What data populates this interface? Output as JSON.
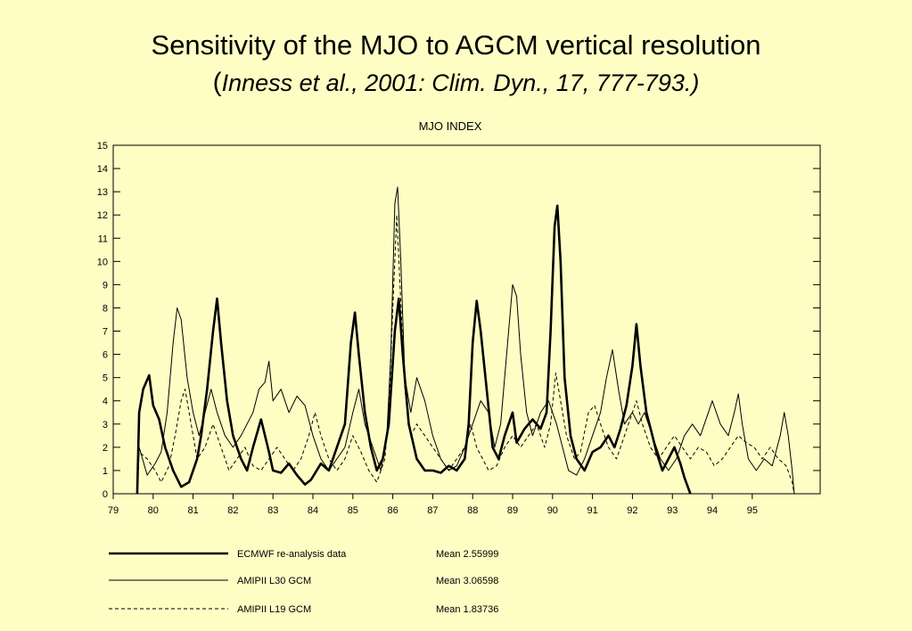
{
  "slide": {
    "title": "Sensitivity of the MJO to AGCM vertical resolution",
    "subtitle_open": "(",
    "subtitle_citation": "Inness et al., 2001: Clim. Dyn., 17, 777-793.)"
  },
  "chart_data": {
    "type": "line",
    "title": "MJO INDEX",
    "xlabel": "",
    "ylabel": "",
    "xlim": [
      79,
      96.7
    ],
    "ylim": [
      0,
      15
    ],
    "x_ticks": [
      "79",
      "80",
      "81",
      "82",
      "83",
      "84",
      "85",
      "86",
      "87",
      "88",
      "89",
      "90",
      "91",
      "92",
      "93",
      "94",
      "95"
    ],
    "y_ticks": [
      "0",
      "1",
      "2",
      "3",
      "4",
      "5",
      "6",
      "7",
      "8",
      "9",
      "10",
      "11",
      "12",
      "13",
      "14",
      "15"
    ],
    "grid": false,
    "legend": "bottom",
    "series": [
      {
        "name": "ECMWF re-analysis data",
        "mean_label": "Mean 2.55999",
        "style": "thick",
        "points": [
          [
            79.6,
            0
          ],
          [
            79.65,
            3.5
          ],
          [
            79.75,
            4.5
          ],
          [
            79.9,
            5.1
          ],
          [
            80.0,
            3.8
          ],
          [
            80.15,
            3.2
          ],
          [
            80.3,
            2.0
          ],
          [
            80.5,
            1.0
          ],
          [
            80.7,
            0.3
          ],
          [
            80.9,
            0.5
          ],
          [
            81.1,
            1.5
          ],
          [
            81.2,
            2.5
          ],
          [
            81.35,
            4.5
          ],
          [
            81.5,
            7.0
          ],
          [
            81.6,
            8.4
          ],
          [
            81.7,
            6.5
          ],
          [
            81.85,
            4.0
          ],
          [
            82.0,
            2.5
          ],
          [
            82.2,
            1.5
          ],
          [
            82.35,
            1.0
          ],
          [
            82.5,
            2.0
          ],
          [
            82.7,
            3.2
          ],
          [
            82.9,
            1.8
          ],
          [
            83.0,
            1.0
          ],
          [
            83.2,
            0.9
          ],
          [
            83.4,
            1.3
          ],
          [
            83.6,
            0.8
          ],
          [
            83.8,
            0.4
          ],
          [
            83.95,
            0.6
          ],
          [
            84.2,
            1.3
          ],
          [
            84.4,
            1.0
          ],
          [
            84.6,
            2.0
          ],
          [
            84.8,
            3.0
          ],
          [
            84.95,
            6.5
          ],
          [
            85.05,
            7.8
          ],
          [
            85.15,
            6.0
          ],
          [
            85.3,
            3.5
          ],
          [
            85.45,
            2.0
          ],
          [
            85.6,
            1.0
          ],
          [
            85.75,
            1.5
          ],
          [
            85.9,
            3.0
          ],
          [
            86.05,
            7.0
          ],
          [
            86.15,
            8.4
          ],
          [
            86.25,
            6.0
          ],
          [
            86.4,
            3.0
          ],
          [
            86.6,
            1.5
          ],
          [
            86.8,
            1.0
          ],
          [
            87.0,
            1.0
          ],
          [
            87.2,
            0.9
          ],
          [
            87.4,
            1.2
          ],
          [
            87.6,
            1.0
          ],
          [
            87.8,
            1.5
          ],
          [
            87.9,
            3.0
          ],
          [
            88.0,
            6.5
          ],
          [
            88.1,
            8.3
          ],
          [
            88.2,
            7.0
          ],
          [
            88.35,
            4.5
          ],
          [
            88.5,
            2.0
          ],
          [
            88.65,
            1.5
          ],
          [
            88.8,
            2.5
          ],
          [
            89.0,
            3.5
          ],
          [
            89.1,
            2.2
          ],
          [
            89.3,
            2.8
          ],
          [
            89.5,
            3.2
          ],
          [
            89.7,
            2.8
          ],
          [
            89.85,
            3.5
          ],
          [
            89.95,
            7.0
          ],
          [
            90.05,
            11.5
          ],
          [
            90.12,
            12.4
          ],
          [
            90.2,
            10.0
          ],
          [
            90.3,
            5.0
          ],
          [
            90.45,
            2.5
          ],
          [
            90.6,
            1.5
          ],
          [
            90.8,
            1.0
          ],
          [
            91.0,
            1.8
          ],
          [
            91.2,
            2.0
          ],
          [
            91.4,
            2.5
          ],
          [
            91.55,
            2.0
          ],
          [
            91.7,
            2.8
          ],
          [
            91.85,
            3.8
          ],
          [
            92.0,
            5.5
          ],
          [
            92.1,
            7.3
          ],
          [
            92.2,
            5.5
          ],
          [
            92.35,
            3.5
          ],
          [
            92.5,
            2.5
          ],
          [
            92.6,
            1.8
          ],
          [
            92.75,
            1.0
          ],
          [
            92.9,
            1.5
          ],
          [
            93.05,
            2.0
          ],
          [
            93.2,
            1.3
          ],
          [
            93.3,
            0.7
          ],
          [
            93.45,
            0
          ]
        ]
      },
      {
        "name": "AMIPII L30 GCM",
        "mean_label": "Mean 3.06598",
        "style": "thin",
        "points": [
          [
            79.6,
            0
          ],
          [
            79.65,
            2.0
          ],
          [
            79.85,
            0.8
          ],
          [
            80.05,
            1.3
          ],
          [
            80.2,
            1.8
          ],
          [
            80.35,
            3.5
          ],
          [
            80.5,
            6.5
          ],
          [
            80.6,
            8.0
          ],
          [
            80.7,
            7.5
          ],
          [
            80.85,
            5.0
          ],
          [
            81.0,
            3.5
          ],
          [
            81.15,
            2.5
          ],
          [
            81.3,
            3.5
          ],
          [
            81.45,
            4.5
          ],
          [
            81.6,
            3.5
          ],
          [
            81.8,
            2.5
          ],
          [
            82.0,
            2.0
          ],
          [
            82.2,
            2.5
          ],
          [
            82.5,
            3.5
          ],
          [
            82.65,
            4.5
          ],
          [
            82.8,
            4.8
          ],
          [
            82.9,
            5.7
          ],
          [
            83.0,
            4.0
          ],
          [
            83.2,
            4.5
          ],
          [
            83.4,
            3.5
          ],
          [
            83.6,
            4.2
          ],
          [
            83.8,
            3.8
          ],
          [
            84.0,
            2.5
          ],
          [
            84.2,
            1.5
          ],
          [
            84.4,
            1.0
          ],
          [
            84.6,
            1.5
          ],
          [
            84.8,
            2.0
          ],
          [
            85.0,
            3.5
          ],
          [
            85.15,
            4.5
          ],
          [
            85.3,
            3.0
          ],
          [
            85.5,
            2.0
          ],
          [
            85.7,
            1.0
          ],
          [
            85.85,
            2.5
          ],
          [
            85.95,
            6.0
          ],
          [
            86.05,
            12.5
          ],
          [
            86.12,
            13.2
          ],
          [
            86.2,
            10.0
          ],
          [
            86.3,
            5.0
          ],
          [
            86.45,
            3.5
          ],
          [
            86.6,
            5.0
          ],
          [
            86.8,
            4.0
          ],
          [
            87.0,
            2.5
          ],
          [
            87.2,
            1.5
          ],
          [
            87.4,
            1.0
          ],
          [
            87.6,
            1.2
          ],
          [
            87.8,
            2.0
          ],
          [
            88.0,
            3.0
          ],
          [
            88.2,
            4.0
          ],
          [
            88.4,
            3.5
          ],
          [
            88.55,
            2.0
          ],
          [
            88.7,
            3.0
          ],
          [
            88.85,
            6.0
          ],
          [
            89.0,
            9.0
          ],
          [
            89.1,
            8.5
          ],
          [
            89.2,
            6.0
          ],
          [
            89.35,
            3.5
          ],
          [
            89.5,
            2.5
          ],
          [
            89.7,
            3.5
          ],
          [
            89.9,
            4.0
          ],
          [
            90.0,
            3.5
          ],
          [
            90.1,
            3.0
          ],
          [
            90.25,
            2.0
          ],
          [
            90.4,
            1.0
          ],
          [
            90.6,
            0.8
          ],
          [
            90.8,
            1.5
          ],
          [
            91.0,
            2.5
          ],
          [
            91.2,
            3.5
          ],
          [
            91.35,
            5.0
          ],
          [
            91.5,
            6.2
          ],
          [
            91.65,
            4.5
          ],
          [
            91.8,
            3.0
          ],
          [
            92.0,
            3.5
          ],
          [
            92.15,
            3.0
          ],
          [
            92.3,
            3.5
          ],
          [
            92.5,
            2.5
          ],
          [
            92.7,
            1.5
          ],
          [
            92.9,
            1.0
          ],
          [
            93.1,
            1.5
          ],
          [
            93.3,
            2.5
          ],
          [
            93.5,
            3.0
          ],
          [
            93.7,
            2.5
          ],
          [
            93.9,
            3.5
          ],
          [
            94.0,
            4.0
          ],
          [
            94.2,
            3.0
          ],
          [
            94.4,
            2.5
          ],
          [
            94.55,
            3.5
          ],
          [
            94.65,
            4.3
          ],
          [
            94.75,
            3.0
          ],
          [
            94.9,
            1.5
          ],
          [
            95.1,
            1.0
          ],
          [
            95.3,
            1.5
          ],
          [
            95.5,
            1.2
          ],
          [
            95.7,
            2.5
          ],
          [
            95.8,
            3.5
          ],
          [
            95.9,
            2.5
          ],
          [
            96.0,
            1.0
          ],
          [
            96.05,
            0
          ]
        ]
      },
      {
        "name": "AMIPII L19 GCM",
        "mean_label": "Mean 1.83736",
        "style": "dashed",
        "points": [
          [
            79.6,
            0
          ],
          [
            79.65,
            1.8
          ],
          [
            79.85,
            1.5
          ],
          [
            80.05,
            1.0
          ],
          [
            80.2,
            0.5
          ],
          [
            80.4,
            1.2
          ],
          [
            80.55,
            2.5
          ],
          [
            80.7,
            4.0
          ],
          [
            80.8,
            4.5
          ],
          [
            80.95,
            3.0
          ],
          [
            81.1,
            1.5
          ],
          [
            81.3,
            2.0
          ],
          [
            81.5,
            3.0
          ],
          [
            81.7,
            2.0
          ],
          [
            81.9,
            1.0
          ],
          [
            82.1,
            1.5
          ],
          [
            82.3,
            2.0
          ],
          [
            82.5,
            1.2
          ],
          [
            82.7,
            1.0
          ],
          [
            82.9,
            1.5
          ],
          [
            83.1,
            2.0
          ],
          [
            83.3,
            1.5
          ],
          [
            83.5,
            1.0
          ],
          [
            83.7,
            1.5
          ],
          [
            83.9,
            2.5
          ],
          [
            84.05,
            3.5
          ],
          [
            84.2,
            2.5
          ],
          [
            84.4,
            1.5
          ],
          [
            84.6,
            1.0
          ],
          [
            84.8,
            1.5
          ],
          [
            85.0,
            2.5
          ],
          [
            85.2,
            1.8
          ],
          [
            85.4,
            1.0
          ],
          [
            85.6,
            0.5
          ],
          [
            85.8,
            1.5
          ],
          [
            85.9,
            3.5
          ],
          [
            86.0,
            8.0
          ],
          [
            86.1,
            12.0
          ],
          [
            86.18,
            9.0
          ],
          [
            86.3,
            4.5
          ],
          [
            86.45,
            2.5
          ],
          [
            86.6,
            3.0
          ],
          [
            86.8,
            2.5
          ],
          [
            87.0,
            2.0
          ],
          [
            87.2,
            1.5
          ],
          [
            87.4,
            1.0
          ],
          [
            87.6,
            1.5
          ],
          [
            87.8,
            2.0
          ],
          [
            87.95,
            3.0
          ],
          [
            88.1,
            2.0
          ],
          [
            88.25,
            1.5
          ],
          [
            88.4,
            1.0
          ],
          [
            88.6,
            1.2
          ],
          [
            88.8,
            2.0
          ],
          [
            89.0,
            2.5
          ],
          [
            89.2,
            2.0
          ],
          [
            89.4,
            2.5
          ],
          [
            89.6,
            3.0
          ],
          [
            89.8,
            2.0
          ],
          [
            89.95,
            3.0
          ],
          [
            90.08,
            5.2
          ],
          [
            90.2,
            4.0
          ],
          [
            90.35,
            2.5
          ],
          [
            90.55,
            1.5
          ],
          [
            90.7,
            1.8
          ],
          [
            90.9,
            3.5
          ],
          [
            91.05,
            3.8
          ],
          [
            91.2,
            3.0
          ],
          [
            91.4,
            2.0
          ],
          [
            91.6,
            1.5
          ],
          [
            91.8,
            2.5
          ],
          [
            92.0,
            3.5
          ],
          [
            92.1,
            4.0
          ],
          [
            92.25,
            3.0
          ],
          [
            92.45,
            2.0
          ],
          [
            92.65,
            1.5
          ],
          [
            92.85,
            2.0
          ],
          [
            93.05,
            2.5
          ],
          [
            93.25,
            2.0
          ],
          [
            93.45,
            1.5
          ],
          [
            93.65,
            2.0
          ],
          [
            93.85,
            1.8
          ],
          [
            94.05,
            1.2
          ],
          [
            94.25,
            1.5
          ],
          [
            94.45,
            2.0
          ],
          [
            94.65,
            2.5
          ],
          [
            94.85,
            2.2
          ],
          [
            95.05,
            2.0
          ],
          [
            95.25,
            1.5
          ],
          [
            95.45,
            2.0
          ],
          [
            95.65,
            1.5
          ],
          [
            95.85,
            1.2
          ],
          [
            96.0,
            0.5
          ],
          [
            96.05,
            0
          ]
        ]
      }
    ]
  }
}
